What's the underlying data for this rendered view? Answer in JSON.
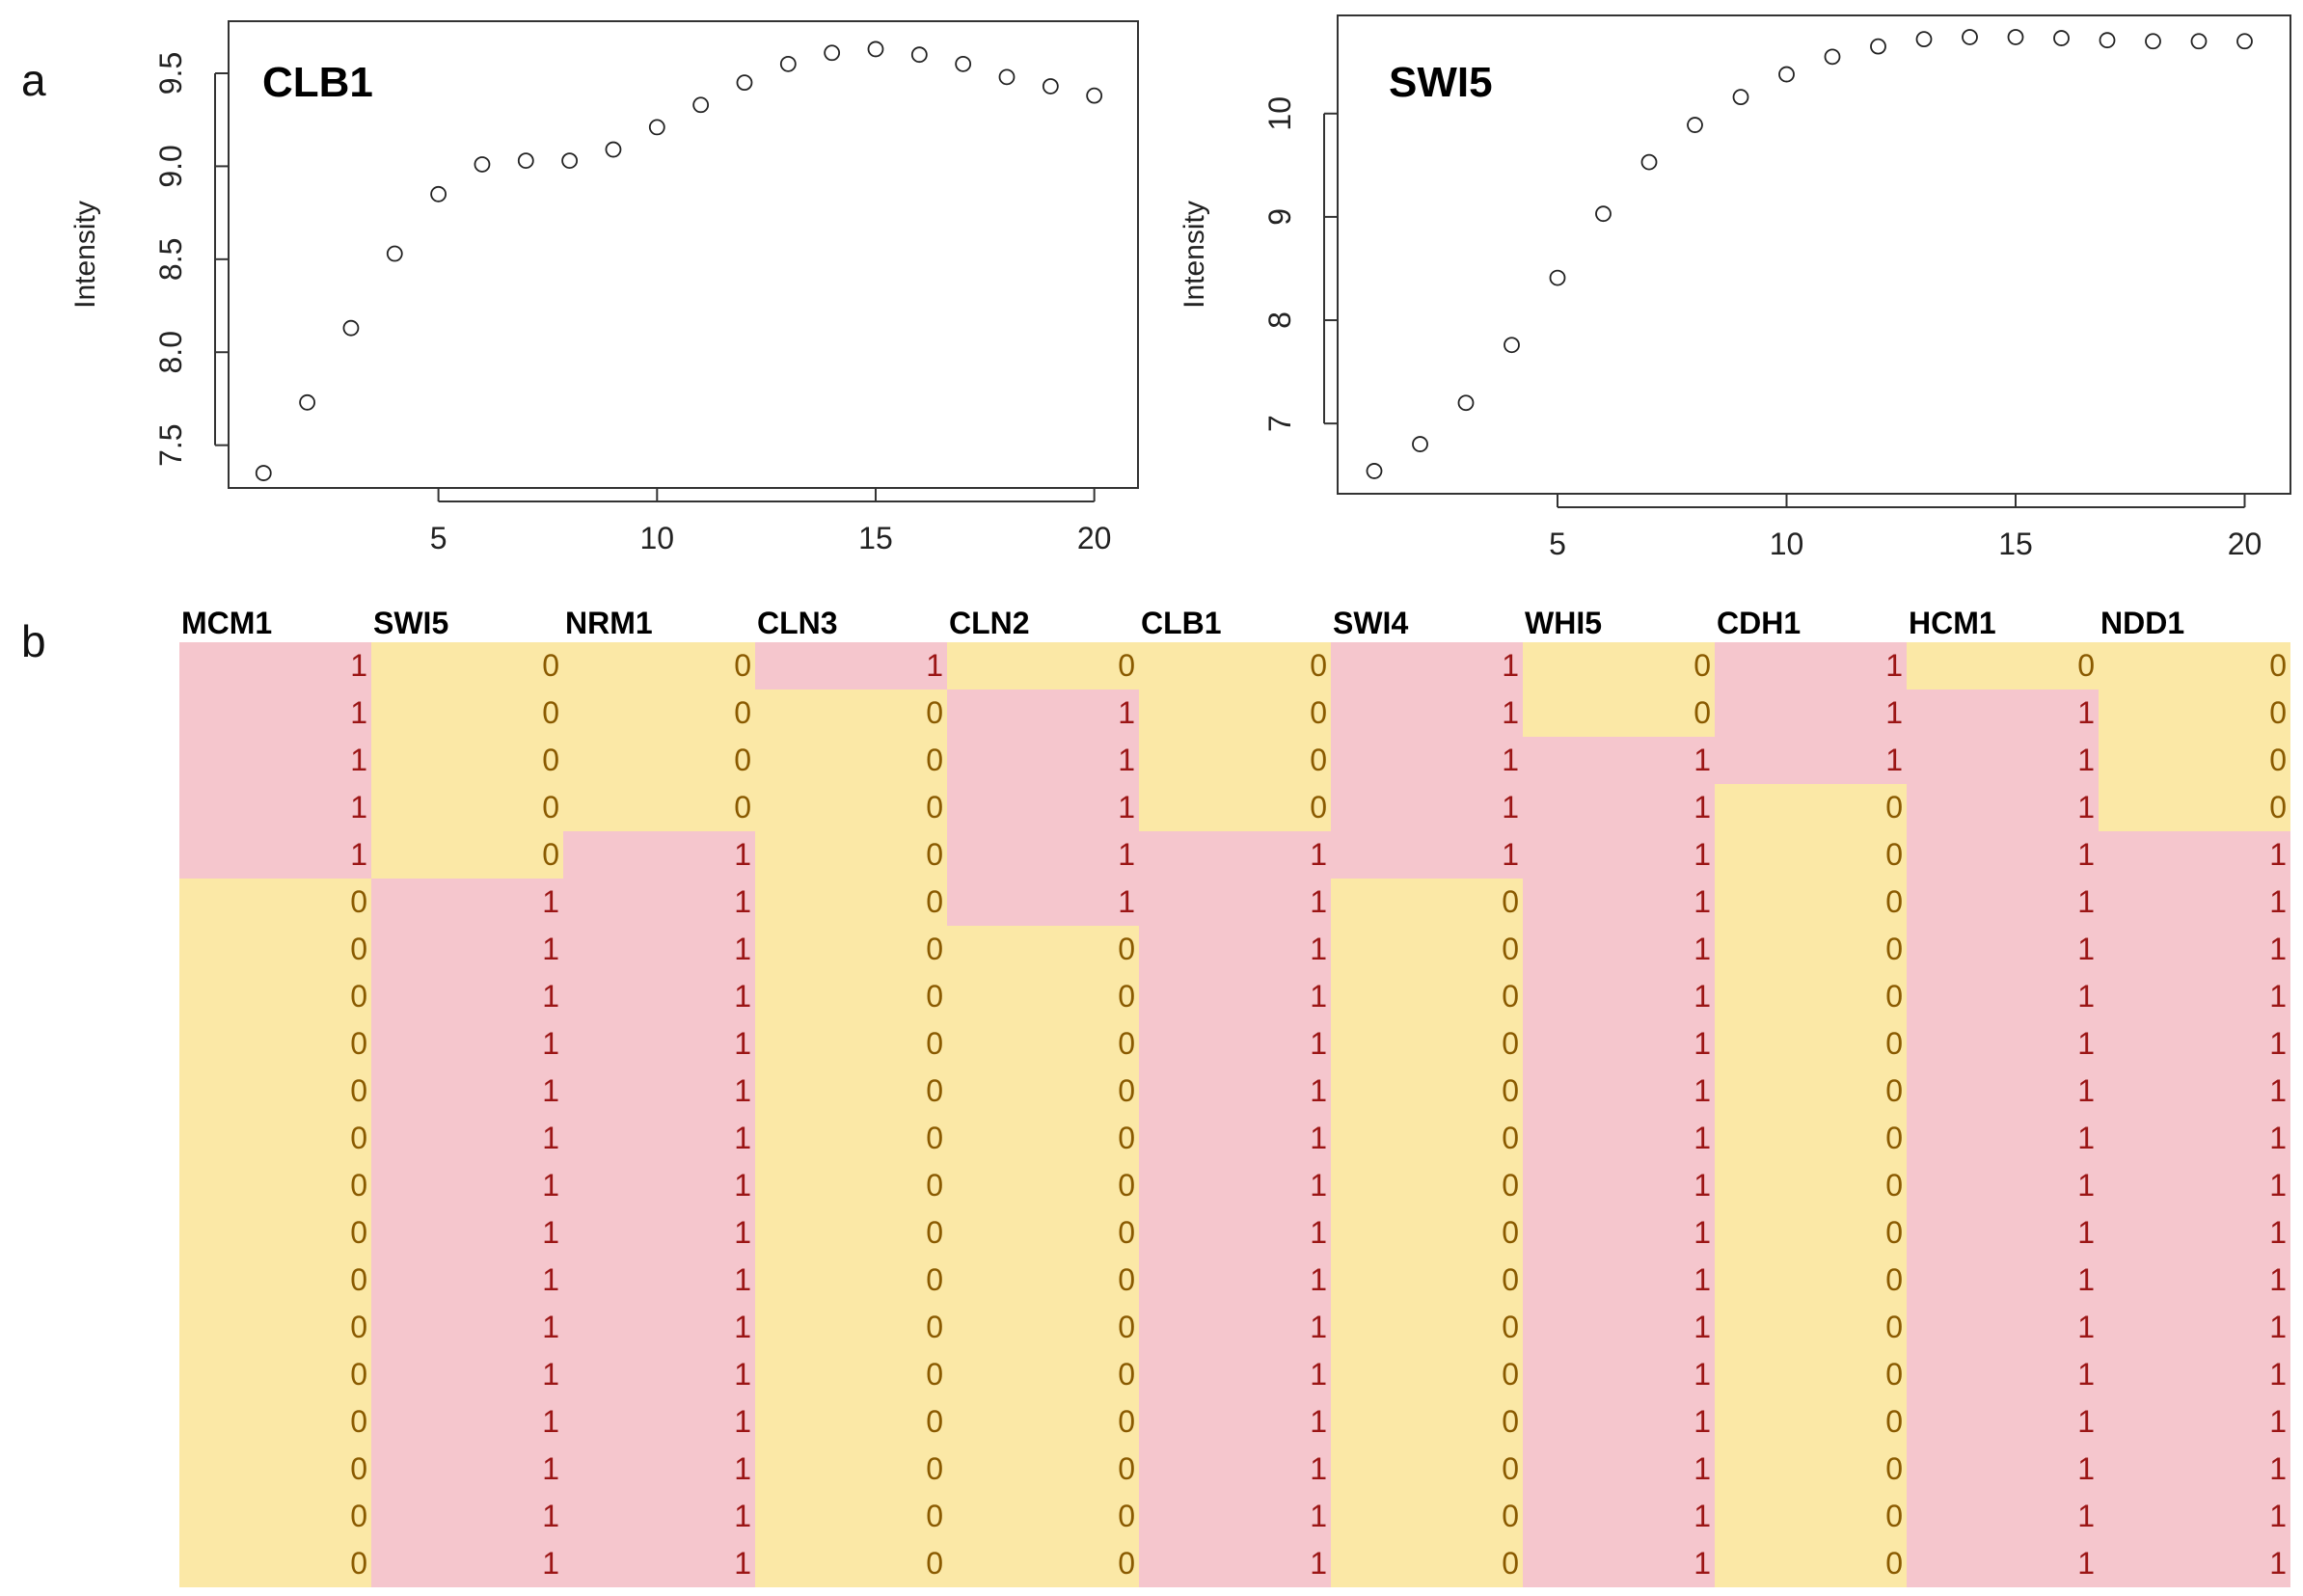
{
  "panel_labels": {
    "a": "a",
    "b": "b"
  },
  "colors": {
    "one_bg": "#f5c6cd",
    "one_text": "#9b1515",
    "zero_bg": "#fbe8a6",
    "zero_text": "#8a5a00"
  },
  "chart_data": [
    {
      "type": "scatter",
      "title": "CLB1",
      "xlabel": "",
      "ylabel": "Intensity",
      "xlim": [
        0.2,
        21
      ],
      "ylim": [
        7.27,
        9.78
      ],
      "xticks": [
        5,
        10,
        15,
        20
      ],
      "yticks": [
        7.5,
        8.0,
        8.5,
        9.0,
        9.5
      ],
      "ytick_labels": [
        "7.5",
        "8.0",
        "8.5",
        "9.0",
        "9.5"
      ],
      "x": [
        1,
        2,
        3,
        4,
        5,
        6,
        7,
        8,
        9,
        10,
        11,
        12,
        13,
        14,
        15,
        16,
        17,
        18,
        19,
        20
      ],
      "y": [
        7.35,
        7.73,
        8.13,
        8.53,
        8.85,
        9.01,
        9.03,
        9.03,
        9.09,
        9.21,
        9.33,
        9.45,
        9.55,
        9.61,
        9.63,
        9.6,
        9.55,
        9.48,
        9.43,
        9.38
      ]
    },
    {
      "type": "scatter",
      "title": "SWI5",
      "xlabel": "",
      "ylabel": "Intensity",
      "xlim": [
        0.2,
        21
      ],
      "ylim": [
        6.32,
        10.95
      ],
      "xticks": [
        5,
        10,
        15,
        20
      ],
      "yticks": [
        7,
        8,
        9,
        10
      ],
      "ytick_labels": [
        "7",
        "8",
        "9",
        "10"
      ],
      "x": [
        1,
        2,
        3,
        4,
        5,
        6,
        7,
        8,
        9,
        10,
        11,
        12,
        13,
        14,
        15,
        16,
        17,
        18,
        19,
        20
      ],
      "y": [
        6.54,
        6.8,
        7.2,
        7.76,
        8.41,
        9.03,
        9.53,
        9.89,
        10.16,
        10.38,
        10.55,
        10.65,
        10.72,
        10.74,
        10.74,
        10.73,
        10.71,
        10.7,
        10.7,
        10.7
      ]
    }
  ],
  "table": {
    "headers": [
      "MCM1",
      "SWI5",
      "NRM1",
      "CLN3",
      "CLN2",
      "CLB1",
      "SWI4",
      "WHI5",
      "CDH1",
      "HCM1",
      "NDD1"
    ],
    "rows": [
      [
        "1",
        "0",
        "0",
        "1",
        "0",
        "0",
        "1",
        "0",
        "1",
        "0",
        "0"
      ],
      [
        "1",
        "0",
        "0",
        "0",
        "1",
        "0",
        "1",
        "0",
        "1",
        "1",
        "0"
      ],
      [
        "1",
        "0",
        "0",
        "0",
        "1",
        "0",
        "1",
        "1",
        "1",
        "1",
        "0"
      ],
      [
        "1",
        "0",
        "0",
        "0",
        "1",
        "0",
        "1",
        "1",
        "0",
        "1",
        "0"
      ],
      [
        "1",
        "0",
        "1",
        "0",
        "1",
        "1",
        "1",
        "1",
        "0",
        "1",
        "1"
      ],
      [
        "0",
        "1",
        "1",
        "0",
        "1",
        "1",
        "0",
        "1",
        "0",
        "1",
        "1"
      ],
      [
        "0",
        "1",
        "1",
        "0",
        "0",
        "1",
        "0",
        "1",
        "0",
        "1",
        "1"
      ],
      [
        "0",
        "1",
        "1",
        "0",
        "0",
        "1",
        "0",
        "1",
        "0",
        "1",
        "1"
      ],
      [
        "0",
        "1",
        "1",
        "0",
        "0",
        "1",
        "0",
        "1",
        "0",
        "1",
        "1"
      ],
      [
        "0",
        "1",
        "1",
        "0",
        "0",
        "1",
        "0",
        "1",
        "0",
        "1",
        "1"
      ],
      [
        "0",
        "1",
        "1",
        "0",
        "0",
        "1",
        "0",
        "1",
        "0",
        "1",
        "1"
      ],
      [
        "0",
        "1",
        "1",
        "0",
        "0",
        "1",
        "0",
        "1",
        "0",
        "1",
        "1"
      ],
      [
        "0",
        "1",
        "1",
        "0",
        "0",
        "1",
        "0",
        "1",
        "0",
        "1",
        "1"
      ],
      [
        "0",
        "1",
        "1",
        "0",
        "0",
        "1",
        "0",
        "1",
        "0",
        "1",
        "1"
      ],
      [
        "0",
        "1",
        "1",
        "0",
        "0",
        "1",
        "0",
        "1",
        "0",
        "1",
        "1"
      ],
      [
        "0",
        "1",
        "1",
        "0",
        "0",
        "1",
        "0",
        "1",
        "0",
        "1",
        "1"
      ],
      [
        "0",
        "1",
        "1",
        "0",
        "0",
        "1",
        "0",
        "1",
        "0",
        "1",
        "1"
      ],
      [
        "0",
        "1",
        "1",
        "0",
        "0",
        "1",
        "0",
        "1",
        "0",
        "1",
        "1"
      ],
      [
        "0",
        "1",
        "1",
        "0",
        "0",
        "1",
        "0",
        "1",
        "0",
        "1",
        "1"
      ],
      [
        "0",
        "1",
        "1",
        "0",
        "0",
        "1",
        "0",
        "1",
        "0",
        "1",
        "1"
      ]
    ]
  }
}
